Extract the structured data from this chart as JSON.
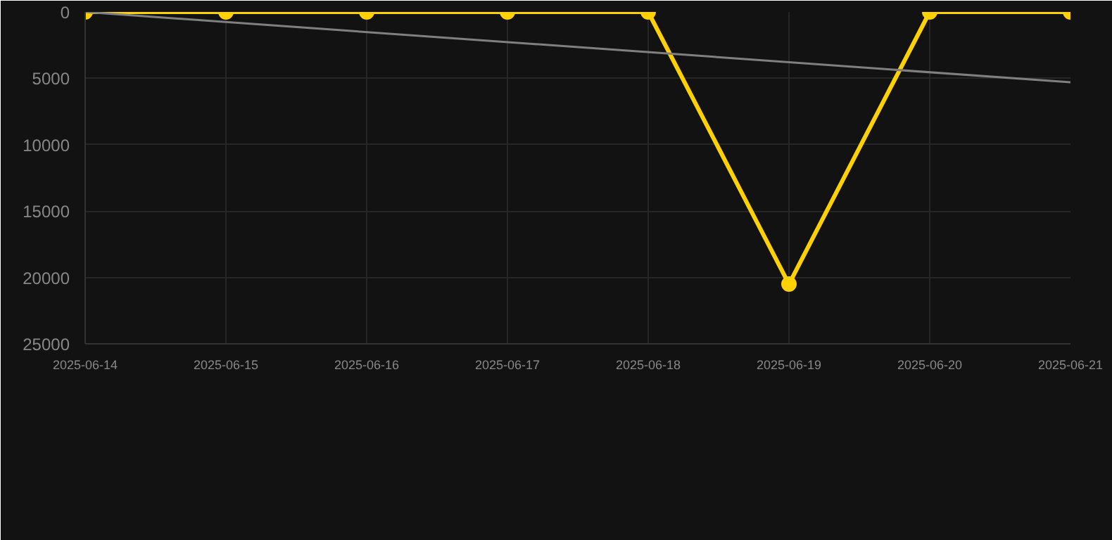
{
  "chart_data": {
    "type": "line",
    "x": [
      "2025-06-14",
      "2025-06-15",
      "2025-06-16",
      "2025-06-17",
      "2025-06-18",
      "2025-06-19",
      "2025-06-20",
      "2025-06-21"
    ],
    "series": [
      {
        "color": "#ffd100",
        "values": [
          0,
          0,
          0,
          0,
          0,
          20500,
          0,
          0
        ],
        "marker": "circle"
      },
      {
        "type": "line",
        "color": "#808080",
        "x": [
          "2025-06-14",
          "2025-06-21"
        ],
        "values": [
          0,
          5300
        ],
        "marker": "none"
      }
    ],
    "xlim": [
      "2025-06-14",
      "2025-06-21"
    ],
    "xticks": [
      "2025-06-14",
      "2025-06-15",
      "2025-06-16",
      "2025-06-17",
      "2025-06-18",
      "2025-06-19",
      "2025-06-20",
      "2025-06-21"
    ],
    "ylim": [
      25000,
      0
    ],
    "yticks": [
      0,
      5000,
      10000,
      15000,
      20000,
      25000
    ],
    "grid": true
  }
}
